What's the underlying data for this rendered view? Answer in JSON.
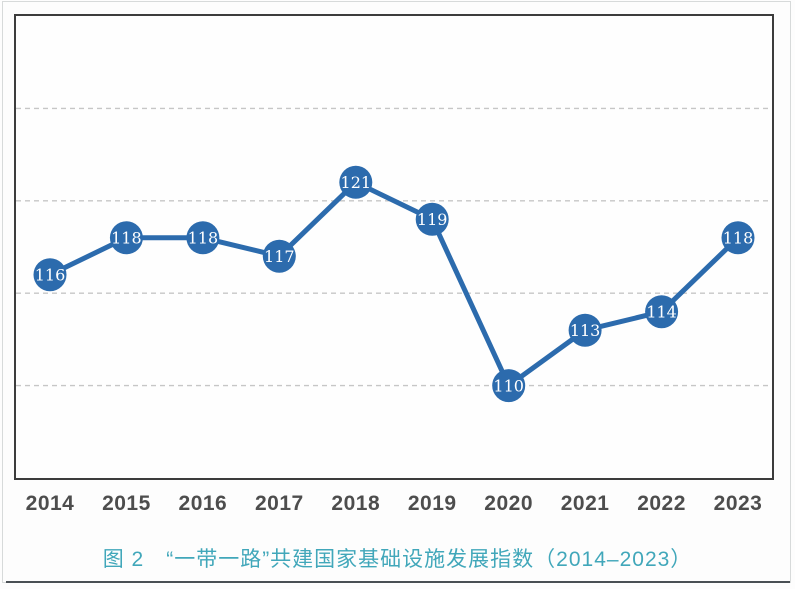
{
  "figure": {
    "caption": "图 2　“一带一路”共建国家基础设施发展指数（2014–2023）"
  },
  "chart_data": {
    "type": "line",
    "title": "“一带一路”共建国家基础设施发展指数（2014–2023）",
    "categories": [
      "2014",
      "2015",
      "2016",
      "2017",
      "2018",
      "2019",
      "2020",
      "2021",
      "2022",
      "2023"
    ],
    "values": [
      116,
      118,
      118,
      117,
      121,
      119,
      110,
      113,
      114,
      118
    ],
    "xlabel": "",
    "ylabel": "",
    "ylim": [
      105,
      130
    ],
    "gridline_values": [
      110,
      115,
      120,
      125
    ],
    "grid_style": "dashed-horizontal",
    "legend": "none",
    "point_labels_visible": true,
    "colors": {
      "line": "#2c6bad",
      "marker_fill": "#2c6bad",
      "marker_text": "#ffffff",
      "gridline": "#c6c6c6",
      "plot_border": "#3c3c3c",
      "tick_label": "#4d4d4d",
      "caption": "#41a7ba"
    }
  }
}
